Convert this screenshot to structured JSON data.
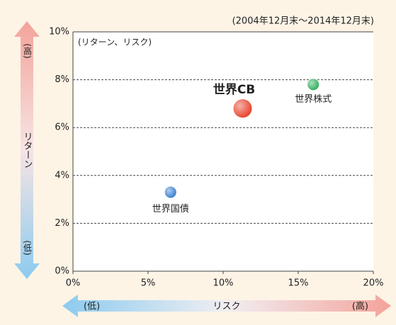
{
  "chart_data": {
    "type": "scatter",
    "title": "(2004年12月末～2014年12月末)",
    "subtitle": "(リターン、リスク)",
    "xlabel": "リスク",
    "ylabel": "リターン",
    "x_arrow_labels": [
      "(低)",
      "(高)"
    ],
    "y_arrow_labels": [
      "(高)",
      "(低)"
    ],
    "series": [
      {
        "name": "世界国債",
        "color": "#3a7fd0",
        "x": [
          6.5
        ],
        "values": [
          3.3
        ]
      },
      {
        "name": "世界CB",
        "color": "#e8402a",
        "x": [
          11.3
        ],
        "values": [
          6.8
        ]
      },
      {
        "name": "世界株式",
        "color": "#2fae5a",
        "x": [
          16
        ],
        "values": [
          7.8
        ]
      }
    ],
    "xlim": [
      0,
      20
    ],
    "xticks": [
      {
        "value": 0,
        "label": "0%"
      },
      {
        "value": 5,
        "label": "5%"
      },
      {
        "value": 10,
        "label": "10%"
      },
      {
        "value": 15,
        "label": "15%"
      },
      {
        "value": 20,
        "label": "20%"
      }
    ],
    "ylim": [
      0,
      10
    ],
    "yticks": [
      {
        "value": 0,
        "label": "0%"
      },
      {
        "value": 2,
        "label": "2%"
      },
      {
        "value": 4,
        "label": "4%"
      },
      {
        "value": 6,
        "label": "6%"
      },
      {
        "value": 8,
        "label": "8%"
      },
      {
        "value": 10,
        "label": "10%"
      }
    ],
    "grid": true
  }
}
